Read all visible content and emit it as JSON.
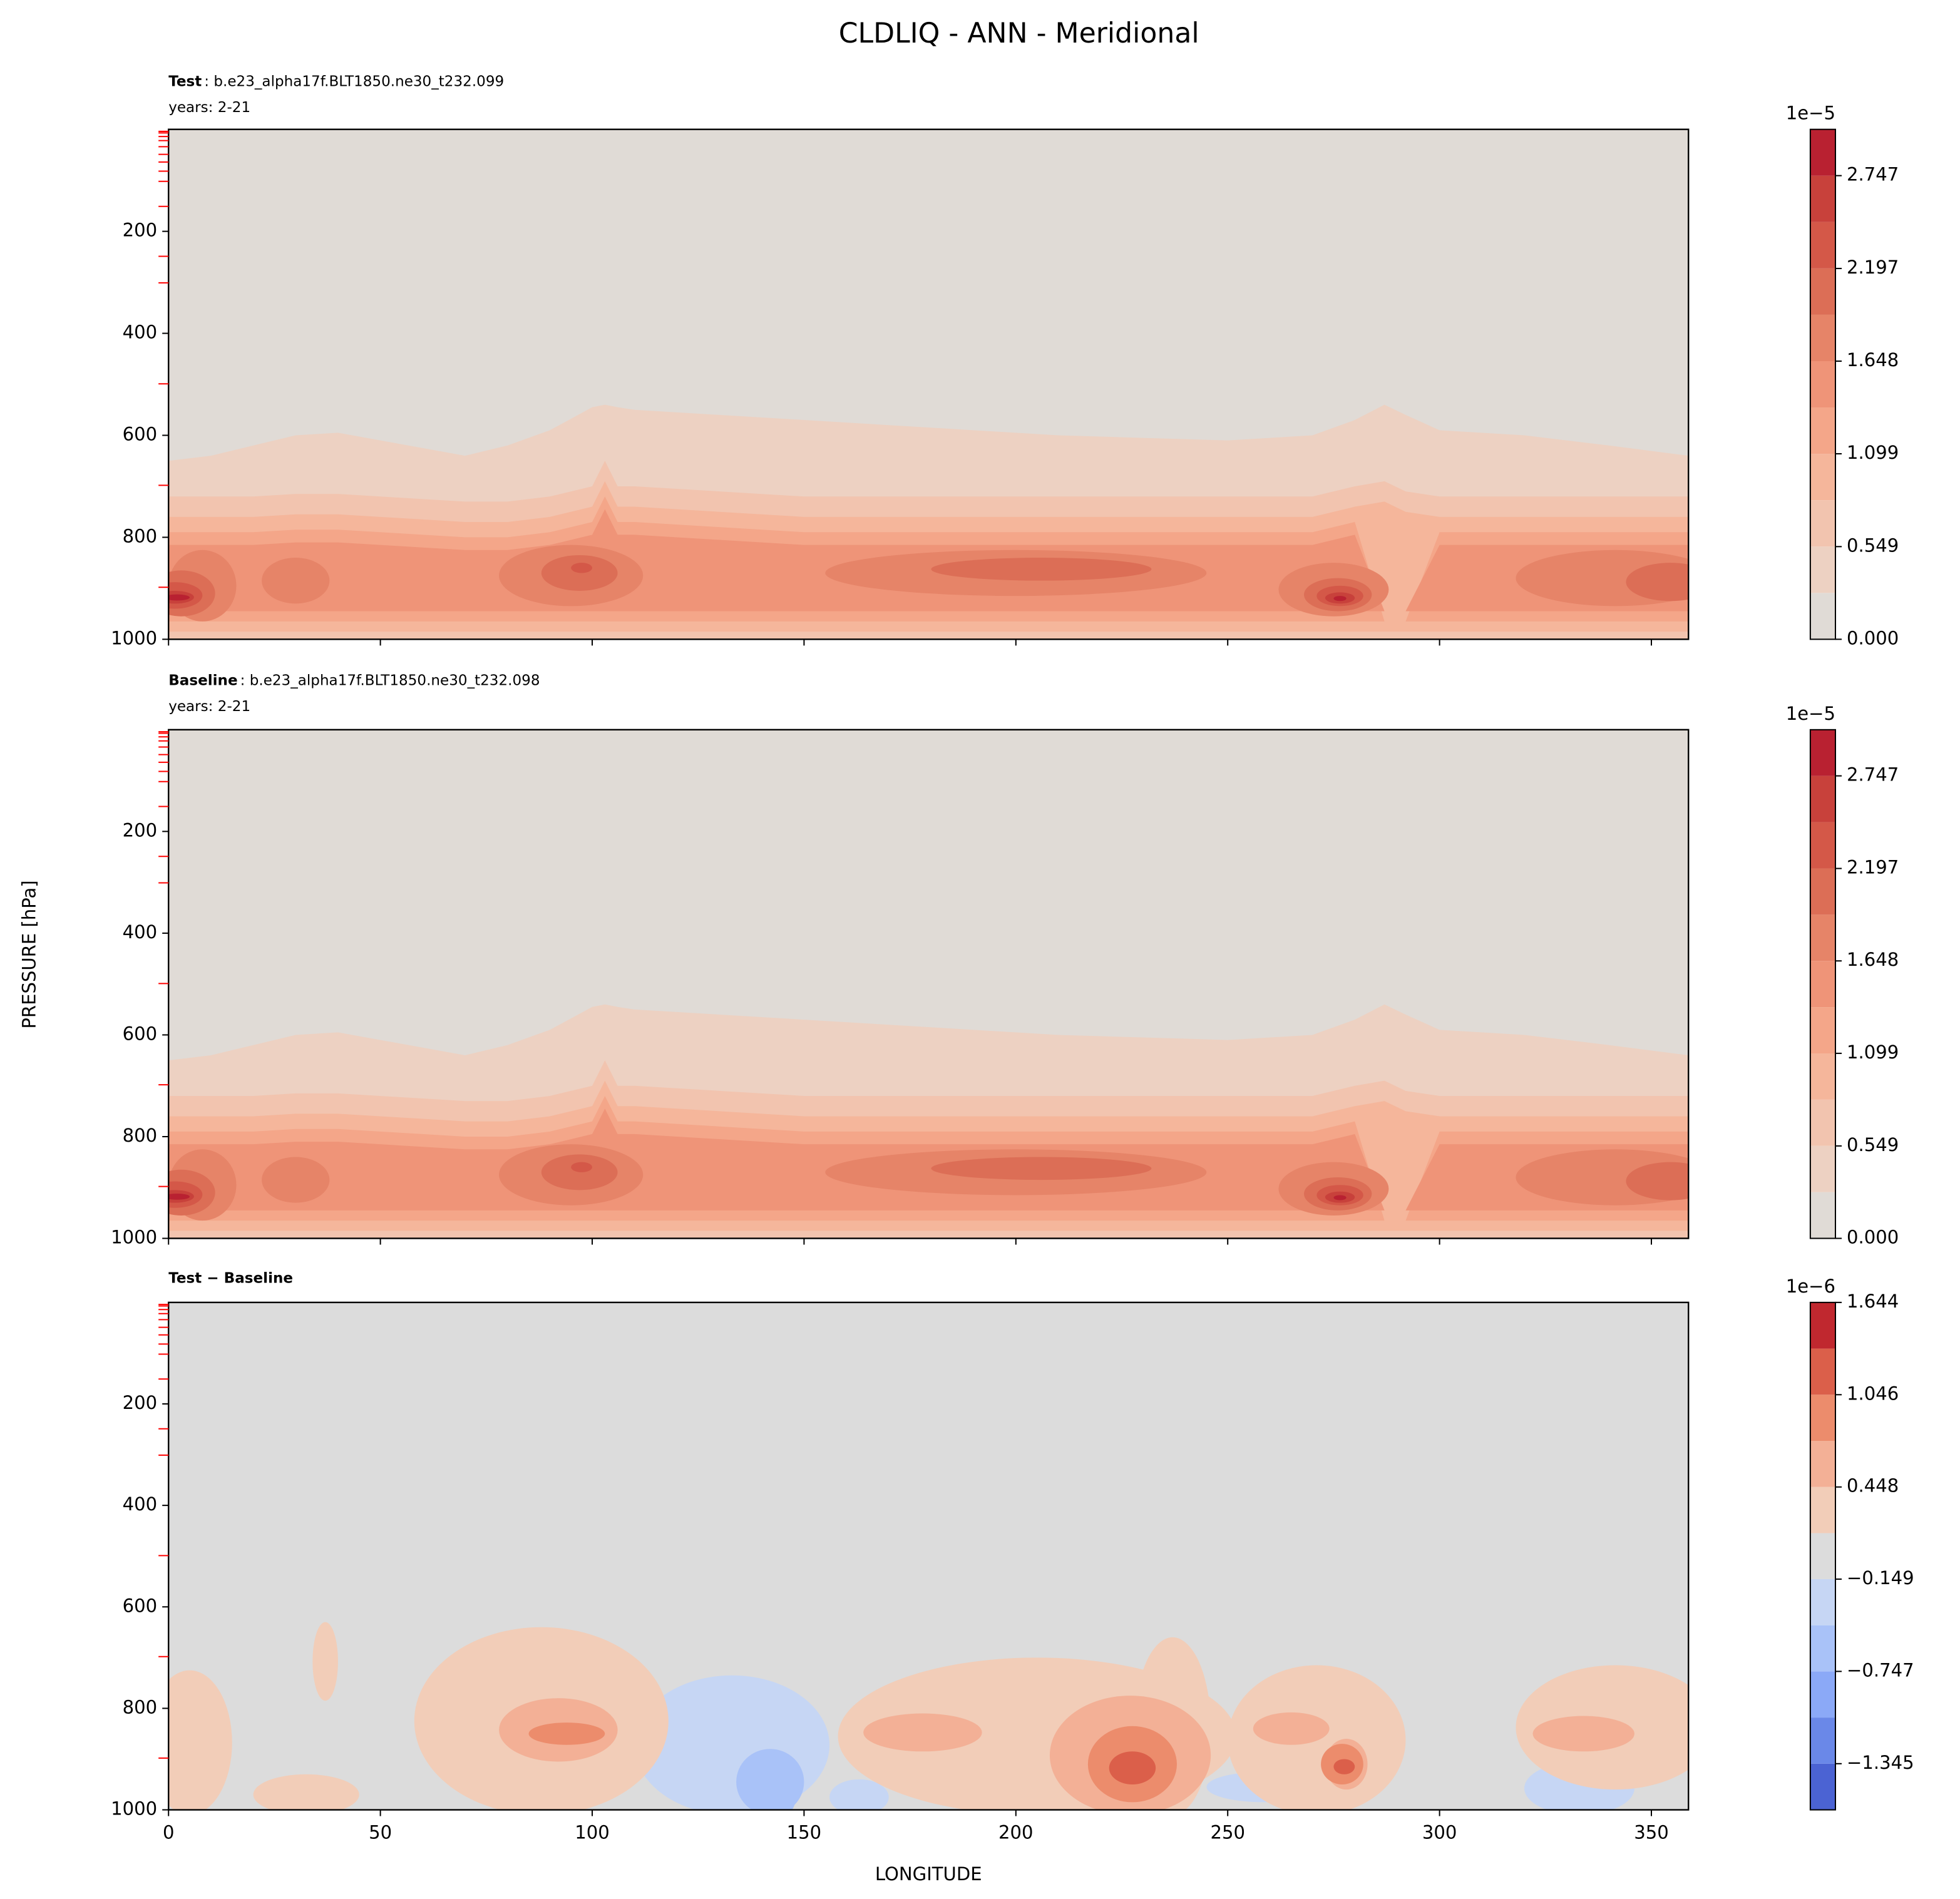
{
  "title": "CLDLIQ - ANN - Meridional",
  "ylabel": "PRESSURE [hPa]",
  "chart_data": [
    {
      "type": "contour",
      "label_bold": "Test",
      "label": ": b.e23_alpha17f.BLT1850.ne30_t232.099",
      "years": "years: 2-21",
      "xlim": [
        0,
        358.75
      ],
      "xticks": [
        0,
        50,
        100,
        150,
        200,
        250,
        300,
        350
      ],
      "show_xtick_labels": false,
      "ylim": [
        1000,
        0
      ],
      "yticks": [
        200,
        400,
        600,
        800,
        1000
      ],
      "minor_yticks": [
        4,
        7,
        14,
        22,
        34,
        49,
        64,
        82,
        102,
        151,
        249,
        301,
        499,
        698,
        898
      ],
      "minor_tick_color": "#ff0000",
      "colorbar": {
        "offset_label": "1e−5",
        "levels": [
          0,
          0.2747,
          0.5493,
          0.824,
          1.0986,
          1.3733,
          1.6479,
          1.9226,
          2.1973,
          2.4719,
          2.7466,
          3.0212
        ],
        "colors": [
          "#e0dbd6",
          "#edd1c2",
          "#f2c4af",
          "#f5b69b",
          "#f4a689",
          "#ef9478",
          "#e68468",
          "#dc6e56",
          "#d45848",
          "#c8413b",
          "#b92131"
        ],
        "ticks": [
          {
            "value": 0,
            "label": "0.000"
          },
          0.549,
          1.099,
          1.648,
          2.197,
          2.747
        ]
      }
    },
    {
      "type": "contour",
      "label_bold": "Baseline",
      "label": ": b.e23_alpha17f.BLT1850.ne30_t232.098",
      "years": "years: 2-21",
      "xlim": [
        0,
        358.75
      ],
      "xticks": [
        0,
        50,
        100,
        150,
        200,
        250,
        300,
        350
      ],
      "show_xtick_labels": false,
      "ylim": [
        1000,
        0
      ],
      "yticks": [
        200,
        400,
        600,
        800,
        1000
      ],
      "minor_yticks": [
        4,
        7,
        14,
        22,
        34,
        49,
        64,
        82,
        102,
        151,
        249,
        301,
        499,
        698,
        898
      ],
      "minor_tick_color": "#ff0000",
      "colorbar": {
        "offset_label": "1e−5",
        "levels": [
          0,
          0.2747,
          0.5493,
          0.824,
          1.0986,
          1.3733,
          1.6479,
          1.9226,
          2.1973,
          2.4719,
          2.7466,
          3.0212
        ],
        "colors": [
          "#e0dbd6",
          "#edd1c2",
          "#f2c4af",
          "#f5b69b",
          "#f4a689",
          "#ef9478",
          "#e68468",
          "#dc6e56",
          "#d45848",
          "#c8413b",
          "#b92131"
        ],
        "ticks": [
          {
            "value": 0,
            "label": "0.000"
          },
          0.549,
          1.099,
          1.648,
          2.197,
          2.747
        ]
      }
    },
    {
      "type": "contour_diff",
      "label_bold": "Test − Baseline",
      "xlim": [
        0,
        358.75
      ],
      "xticks": [
        0,
        50,
        100,
        150,
        200,
        250,
        300,
        350
      ],
      "show_xtick_labels": true,
      "xlabel": "LONGITUDE",
      "ylim": [
        1000,
        0
      ],
      "yticks": [
        200,
        400,
        600,
        800,
        1000
      ],
      "minor_yticks": [
        4,
        7,
        14,
        22,
        34,
        49,
        64,
        82,
        102,
        151,
        249,
        301,
        499,
        698,
        898
      ],
      "minor_tick_color": "#ff0000",
      "colorbar": {
        "offset_label": "1e−6",
        "levels": [
          -1.644,
          -1.345,
          -1.046,
          -0.747,
          -0.448,
          -0.149,
          0.149,
          0.448,
          0.747,
          1.046,
          1.345,
          1.644
        ],
        "colors": [
          "#4b63d3",
          "#6a88e8",
          "#8ba9f7",
          "#a9c2f8",
          "#c6d6f4",
          "#dcdcdc",
          "#f2cdb8",
          "#f3b096",
          "#ec8c6c",
          "#db5f4a",
          "#c0282f"
        ],
        "ticks": [
          {
            "value": -1.345,
            "label": "−1.345"
          },
          {
            "value": -0.747,
            "label": "−0.747"
          },
          {
            "value": -0.149,
            "label": "−0.149"
          },
          0.448,
          1.046,
          1.644
        ]
      }
    }
  ]
}
